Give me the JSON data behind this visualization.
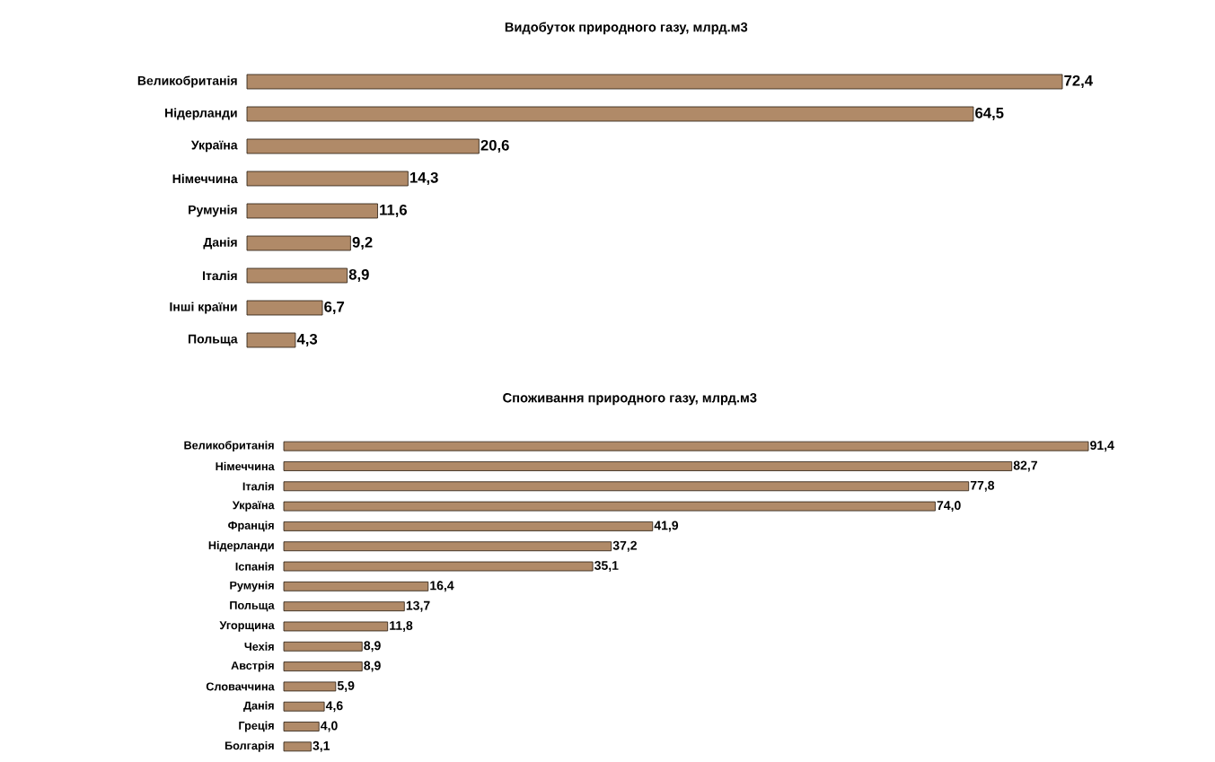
{
  "chart_data": [
    {
      "type": "bar",
      "orientation": "horizontal",
      "title": "Видобуток природного газу, млрд.м3",
      "color": "#b08a68",
      "categories": [
        "Великобританія",
        "Нідерланди",
        "Україна",
        "Німеччина",
        "Румунія",
        "Данія",
        "Італія",
        "Інші країни",
        "Польща"
      ],
      "values": [
        72.4,
        64.5,
        20.6,
        14.3,
        11.6,
        9.2,
        8.9,
        6.7,
        4.3
      ],
      "value_labels": [
        "72,4",
        "64,5",
        "20,6",
        "14,3",
        "11,6",
        "9,2",
        "8,9",
        "6,7",
        "4,3"
      ]
    },
    {
      "type": "bar",
      "orientation": "horizontal",
      "title": "Споживання природного газу, млрд.м3",
      "color": "#b08a68",
      "categories": [
        "Великобританія",
        "Німеччина",
        "Італія",
        "Україна",
        "Франція",
        "Нідерланди",
        "Іспанія",
        "Румунія",
        "Польща",
        "Угорщина",
        "Чехія",
        "Австрія",
        "Словаччина",
        "Данія",
        "Греція",
        "Болгарія"
      ],
      "values": [
        91.4,
        82.7,
        77.8,
        74.0,
        41.9,
        37.2,
        35.1,
        16.4,
        13.7,
        11.8,
        8.9,
        8.9,
        5.9,
        4.6,
        4.0,
        3.1
      ],
      "value_labels": [
        "91,4",
        "82,7",
        "77,8",
        "74,0",
        "41,9",
        "37,2",
        "35,1",
        "16,4",
        "13,7",
        "11,8",
        "8,9",
        "8,9",
        "5,9",
        "4,6",
        "4,0",
        "3,1"
      ]
    }
  ]
}
